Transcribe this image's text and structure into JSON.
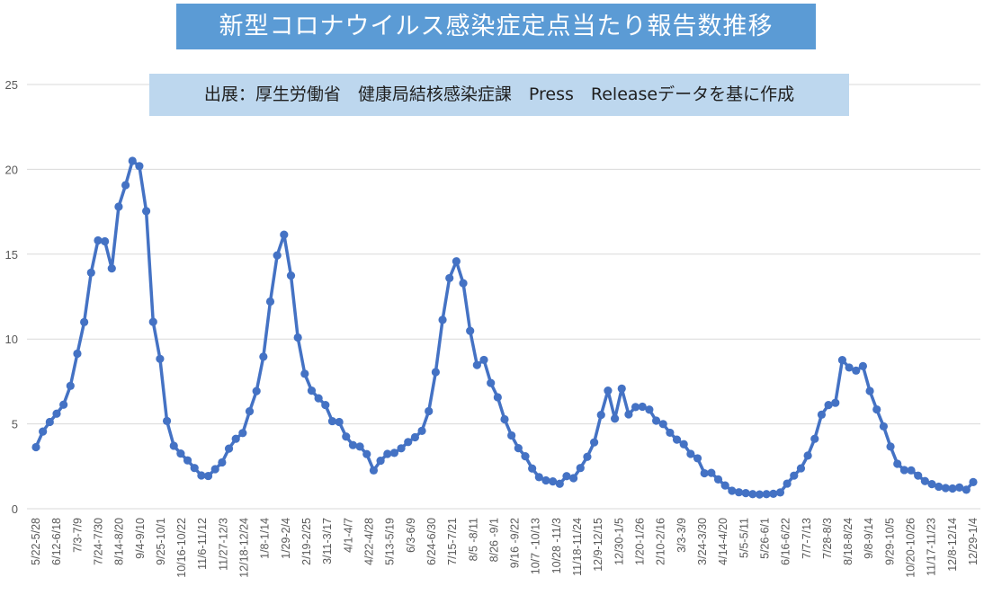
{
  "chart_data": {
    "type": "line",
    "title": "新型コロナウイルス感染症定点当たり報告数推移",
    "subtitle": "出展：厚生労働省　健康局結核感染症課　Press　Releaseデータを基に作成",
    "xlabel": "",
    "ylabel": "",
    "ylim": [
      0,
      25
    ],
    "yticks": [
      0,
      5,
      10,
      15,
      20,
      25
    ],
    "grid": true,
    "legend": "none",
    "colors": {
      "line": "#4472c4",
      "grid": "#d9d9d9",
      "title_bg": "#5b9bd5",
      "subtitle_bg": "#bdd7ee",
      "axis_text": "#595959"
    },
    "x_tick_labels": [
      "5/22-5/28",
      "6/12-6/18",
      "7/3-7/9",
      "7/24-7/30",
      "8/14-8/20",
      "9/4-9/10",
      "9/25-10/1",
      "10/16-10/22",
      "11/6-11/12",
      "11/27-12/3",
      "12/18-12/24",
      "1/8-1/14",
      "1/29-2/4",
      "2/19-2/25",
      "3/11-3/17",
      "4/1-4/7",
      "4/22-4/28",
      "5/13-5/19",
      "6/3-6/9",
      "6/24-6/30",
      "7/15-7/21",
      "8/5 -8/11",
      "8/26 -9/1",
      "9/16 -9/22",
      "10/7 -10/13",
      "10/28 -11/3",
      "11/18-11/24",
      "12/9-12/15",
      "12/30-1/5",
      "1/20-1/26",
      "2/10-2/16",
      "3/3-3/9",
      "3/24-3/30",
      "4/14-4/20",
      "5/5-5/11",
      "5/26-6/1",
      "6/16-6/22",
      "7/7-7/13",
      "7/28-8/3",
      "8/18-8/24",
      "9/8-9/14",
      "9/29-10/5",
      "10/20-10/26",
      "11/17-11/23",
      "12/8-12/14",
      "12/29-1/4"
    ],
    "series": [
      {
        "values": [
          3.63,
          4.55,
          5.11,
          5.6,
          6.13,
          7.24,
          9.14,
          11.0,
          13.91,
          15.81,
          15.76,
          14.16,
          17.8,
          19.07,
          20.5,
          20.19,
          17.54,
          11.01,
          8.83,
          5.17,
          3.71,
          3.25,
          2.85,
          2.4,
          1.96,
          1.93,
          2.33,
          2.73,
          3.54,
          4.12,
          4.46,
          5.74,
          6.93,
          8.96,
          12.21,
          14.93,
          16.15,
          13.74,
          10.09,
          7.95,
          6.96,
          6.51,
          6.11,
          5.16,
          5.11,
          4.25,
          3.75,
          3.66,
          3.22,
          2.26,
          2.83,
          3.23,
          3.29,
          3.56,
          3.93,
          4.21,
          4.59,
          5.75,
          8.05,
          11.13,
          13.59,
          14.58,
          13.29,
          10.48,
          8.47,
          8.77,
          7.41,
          6.57,
          5.27,
          4.32,
          3.57,
          3.09,
          2.37,
          1.86,
          1.67,
          1.61,
          1.47,
          1.92,
          1.8,
          2.4,
          3.06,
          3.91,
          5.53,
          6.96,
          5.31,
          7.08,
          5.56,
          5.99,
          6.01,
          5.84,
          5.19,
          4.99,
          4.48,
          4.07,
          3.8,
          3.23,
          2.97,
          2.09,
          2.11,
          1.73,
          1.37,
          1.06,
          0.97,
          0.92,
          0.86,
          0.84,
          0.86,
          0.88,
          0.96,
          1.48,
          1.95,
          2.38,
          3.13,
          4.12,
          5.54,
          6.11,
          6.24,
          8.76,
          8.32,
          8.14,
          8.4,
          6.94,
          5.85,
          4.85,
          3.66,
          2.65,
          2.28,
          2.26,
          1.95,
          1.63,
          1.45,
          1.3,
          1.22,
          1.19,
          1.25,
          1.12,
          1.57
        ]
      }
    ]
  }
}
